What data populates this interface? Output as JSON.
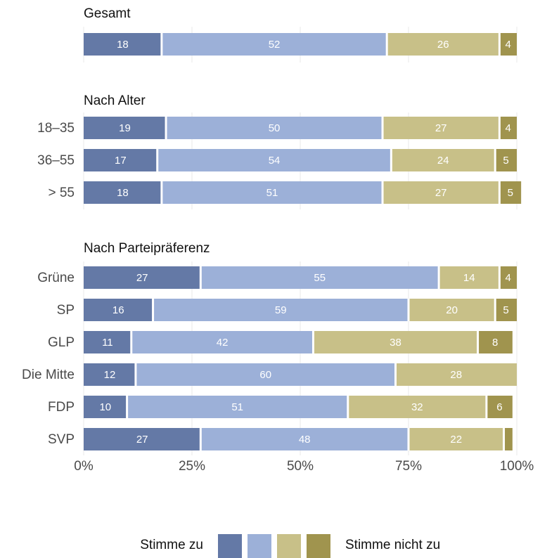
{
  "chart_data": {
    "type": "bar",
    "orientation": "horizontal",
    "stacked": true,
    "percent": true,
    "xlim": [
      0,
      100
    ],
    "x_ticks": [
      "0%",
      "25%",
      "50%",
      "75%",
      "100%"
    ],
    "grid": true,
    "series_colors": [
      "#6479a6",
      "#9cb0d8",
      "#c8c088",
      "#a0944e"
    ],
    "label_color": "#ffffff",
    "groups": [
      {
        "title": "Gesamt",
        "rows": [
          {
            "label": "",
            "values": [
              18,
              52,
              26,
              4
            ]
          }
        ]
      },
      {
        "title": "Nach Alter",
        "rows": [
          {
            "label": "18–35",
            "values": [
              19,
              50,
              27,
              4
            ]
          },
          {
            "label": "36–55",
            "values": [
              17,
              54,
              24,
              5
            ]
          },
          {
            "label": "> 55",
            "values": [
              18,
              51,
              27,
              5
            ]
          }
        ]
      },
      {
        "title": "Nach Parteipräferenz",
        "rows": [
          {
            "label": "Grüne",
            "values": [
              27,
              55,
              14,
              4
            ]
          },
          {
            "label": "SP",
            "values": [
              16,
              59,
              20,
              5
            ]
          },
          {
            "label": "GLP",
            "values": [
              11,
              42,
              38,
              8
            ]
          },
          {
            "label": "Die Mitte",
            "values": [
              12,
              60,
              28,
              0
            ]
          },
          {
            "label": "FDP",
            "values": [
              10,
              51,
              32,
              6
            ]
          },
          {
            "label": "SVP",
            "values": [
              27,
              48,
              22,
              2
            ]
          }
        ]
      }
    ],
    "hidden_value_labels": [
      "SVP-4"
    ],
    "legend": {
      "position": "bottom",
      "left_label": "Stimme zu",
      "right_label": "Stimme nicht zu"
    }
  }
}
